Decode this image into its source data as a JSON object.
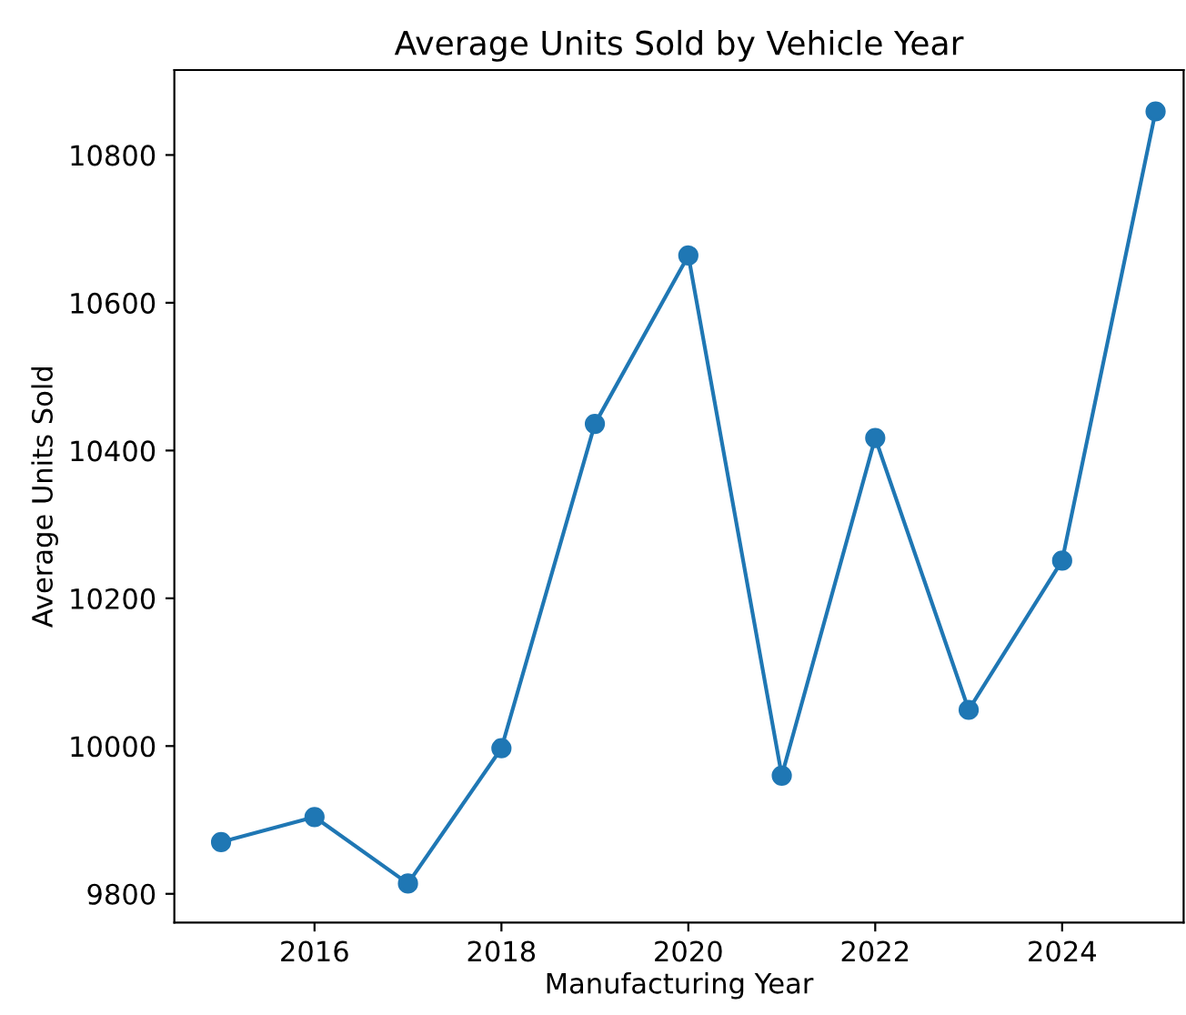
{
  "chart_data": {
    "type": "line",
    "title": "Average Units Sold by Vehicle Year",
    "xlabel": "Manufacturing Year",
    "ylabel": "Average Units Sold",
    "x": [
      2015,
      2016,
      2017,
      2018,
      2019,
      2020,
      2021,
      2022,
      2023,
      2024,
      2025
    ],
    "series": [
      {
        "color": "#1f77b4",
        "values": [
          9870,
          9904,
          9814,
          9997,
          10436,
          10664,
          9960,
          10417,
          10049,
          10251,
          10859
        ]
      }
    ],
    "xlim": [
      2014.5,
      2025.3
    ],
    "xticks": [
      2016,
      2018,
      2020,
      2022,
      2024
    ],
    "ylim": [
      9761,
      10915
    ],
    "yticks": [
      9800,
      10000,
      10200,
      10400,
      10600,
      10800
    ],
    "marker": "circle",
    "line_style": "solid",
    "grid": false,
    "legend": false
  }
}
